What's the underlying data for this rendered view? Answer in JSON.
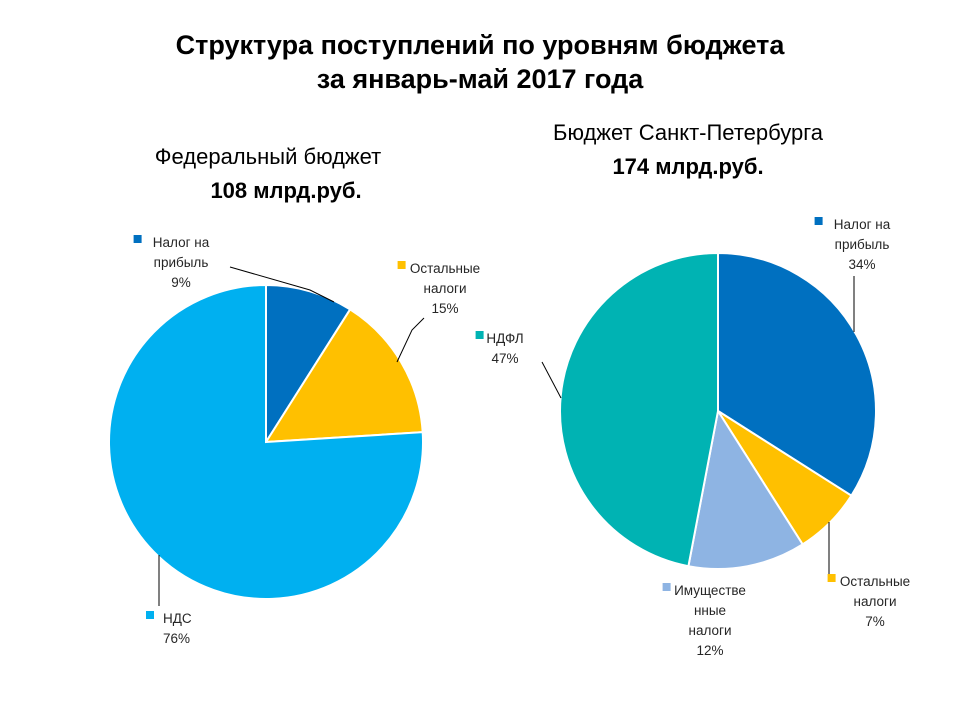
{
  "title": {
    "line1": "Структура поступлений по уровням бюджета",
    "line2": "за январь-май 2017 года"
  },
  "charts": {
    "federal": {
      "name": "Федеральный бюджет",
      "amount": "108 млрд.руб."
    },
    "spb": {
      "name": "Бюджет Санкт-Петербурга",
      "amount": "174 млрд.руб."
    }
  },
  "chart_data": [
    {
      "type": "pie",
      "title": "Федеральный бюджет",
      "subtitle": "108 млрд.руб.",
      "series": [
        {
          "name": "Налог на прибыль",
          "label_lines": [
            "Налог  на",
            "прибыль"
          ],
          "value": 9,
          "value_label": "9%",
          "color": "#0070C0"
        },
        {
          "name": "Остальные налоги",
          "label_lines": [
            "Остальные",
            "налоги"
          ],
          "value": 15,
          "value_label": "15%",
          "color": "#FFC000"
        },
        {
          "name": "НДС",
          "label_lines": [
            "НДС"
          ],
          "value": 76,
          "value_label": "76%",
          "color": "#00B0F0"
        }
      ]
    },
    {
      "type": "pie",
      "title": "Бюджет Санкт-Петербурга",
      "subtitle": "174 млрд.руб.",
      "series": [
        {
          "name": "Налог на прибыль",
          "label_lines": [
            "Налог  на",
            "прибыль"
          ],
          "value": 34,
          "value_label": "34%",
          "color": "#0070C0"
        },
        {
          "name": "Остальные налоги",
          "label_lines": [
            "Остальные",
            "налоги"
          ],
          "value": 7,
          "value_label": "7%",
          "color": "#FFC000"
        },
        {
          "name": "Имущественные налоги",
          "label_lines": [
            "Имуществе",
            "нные",
            "налоги"
          ],
          "value": 12,
          "value_label": "12%",
          "color": "#8EB4E3"
        },
        {
          "name": "НДФЛ",
          "label_lines": [
            "НДФЛ"
          ],
          "value": 47,
          "value_label": "47%",
          "color": "#00B3B3"
        }
      ]
    }
  ]
}
